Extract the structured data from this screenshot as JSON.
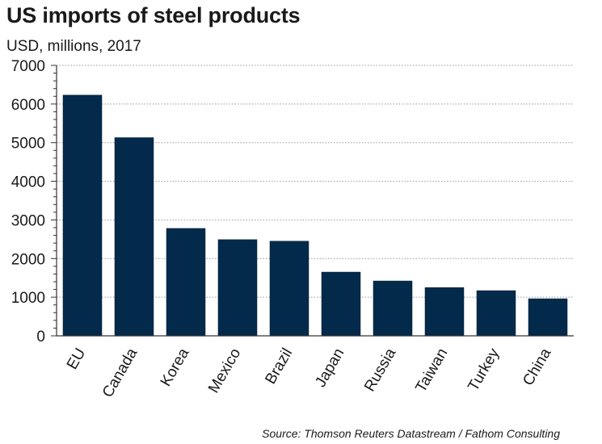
{
  "header": {
    "title": "US imports of steel products",
    "subtitle": "USD, millions, 2017"
  },
  "footer": {
    "source": "Source: Thomson Reuters Datastream / Fathom Consulting"
  },
  "colors": {
    "bar": "#032a4a",
    "axis": "#333333",
    "grid": "#9a9a9a"
  },
  "chart_data": {
    "type": "bar",
    "title": "US imports of steel products",
    "subtitle": "USD, millions, 2017",
    "xlabel": "",
    "ylabel": "",
    "categories": [
      "EU",
      "Canada",
      "Korea",
      "Mexico",
      "Brazil",
      "Japan",
      "Russia",
      "Taiwan",
      "Turkey",
      "China"
    ],
    "values": [
      6230,
      5130,
      2780,
      2490,
      2450,
      1650,
      1420,
      1250,
      1170,
      960
    ],
    "ylim": [
      0,
      7000
    ],
    "yticks": [
      0,
      1000,
      2000,
      3000,
      4000,
      5000,
      6000,
      7000
    ],
    "grid": true,
    "legend": "none"
  }
}
